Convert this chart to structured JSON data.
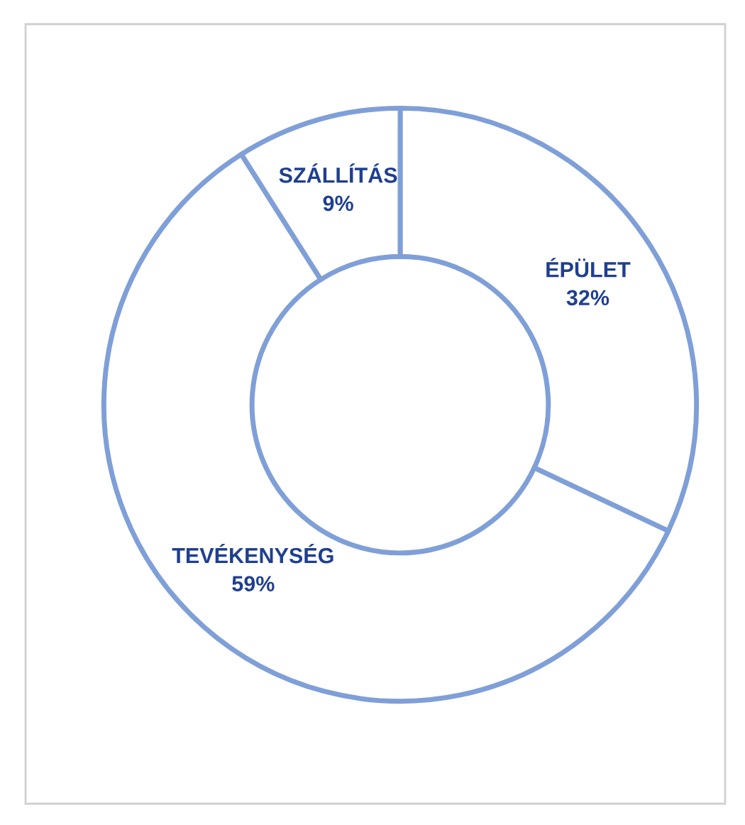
{
  "chart_data": {
    "type": "donut",
    "categories": [
      "ÉPÜLET",
      "TEVÉKENYSÉG",
      "SZÁLLÍTÁS"
    ],
    "values": [
      32,
      59,
      9
    ],
    "colors": [
      "#ffffff",
      "#ffffff",
      "#ffffff"
    ],
    "value_labels": [
      "32%",
      "59%",
      "9%"
    ],
    "legend": false
  }
}
